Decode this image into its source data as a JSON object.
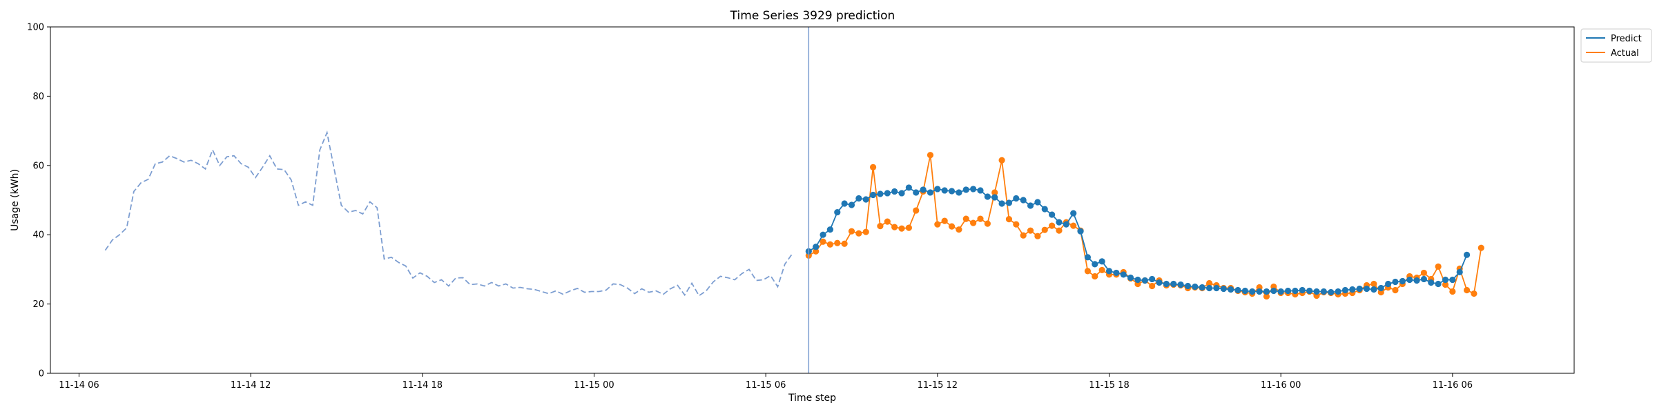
{
  "chart_data": {
    "type": "line",
    "title": "Time Series 3929 prediction",
    "xlabel": "Time step",
    "ylabel": "Usage (kWh)",
    "ylim": [
      0,
      100
    ],
    "yticks": [
      "0",
      "20",
      "40",
      "60",
      "80",
      "100"
    ],
    "x_start": "2023-11-14 05:00",
    "x_end": "2023-11-16 10:15",
    "xticks": [
      {
        "label": "11-14 06",
        "time": "2023-11-14 06:00"
      },
      {
        "label": "11-14 12",
        "time": "2023-11-14 12:00"
      },
      {
        "label": "11-14 18",
        "time": "2023-11-14 18:00"
      },
      {
        "label": "11-15 00",
        "time": "2023-11-15 00:00"
      },
      {
        "label": "11-15 06",
        "time": "2023-11-15 06:00"
      },
      {
        "label": "11-15 12",
        "time": "2023-11-15 12:00"
      },
      {
        "label": "11-15 18",
        "time": "2023-11-15 18:00"
      },
      {
        "label": "11-16 00",
        "time": "2023-11-16 00:00"
      },
      {
        "label": "11-16 06",
        "time": "2023-11-16 06:00"
      }
    ],
    "split_time": "2023-11-15 07:30",
    "legend_position": "outside-top-right",
    "colors": {
      "predict": "#1f77b4",
      "actual": "#ff7f0e",
      "history": "#7d9ed1",
      "split_line": "#7d9ed1"
    },
    "history": {
      "start": "2023-11-14 06:55",
      "step_minutes": 15,
      "values": [
        35.5,
        38.5,
        40,
        42,
        52.5,
        55,
        56,
        60.5,
        61,
        62.8,
        62,
        61,
        61.5,
        60.5,
        59,
        64.5,
        60,
        62.5,
        62.8,
        60.5,
        59.5,
        56.5,
        59.5,
        62.8,
        59,
        58.8,
        55.8,
        48.5,
        49.5,
        48.5,
        64.5,
        69.5,
        59,
        48.5,
        46.5,
        47,
        46,
        49.5,
        47.8,
        33,
        33.5,
        32,
        31,
        27.5,
        29,
        28,
        26.2,
        27,
        25.2,
        27.5,
        27.6,
        25.6,
        25.8,
        25.2,
        26.2,
        25.2,
        25.8,
        24.6,
        24.8,
        24.4,
        24.2,
        23.6,
        23,
        23.8,
        22.8,
        23.8,
        24.5,
        23.4,
        23.6,
        23.6,
        24,
        25.8,
        25.6,
        24.6,
        23,
        24.4,
        23.4,
        23.8,
        22.8,
        24.4,
        25.4,
        22.6,
        26,
        22.4,
        23.8,
        26.4,
        28,
        27.6,
        27,
        28.8,
        30,
        26.8,
        27,
        28.2,
        25,
        31.5,
        34.4
      ]
    },
    "series": [
      {
        "name": "Predict",
        "start": "2023-11-15 07:30",
        "step_minutes": 15,
        "values": [
          35.2,
          36.5,
          40,
          41.5,
          46.5,
          49,
          48.6,
          50.5,
          50.2,
          51.5,
          51.8,
          52,
          52.5,
          52,
          53.6,
          52.2,
          53,
          52.2,
          53.2,
          52.8,
          52.6,
          52.2,
          53,
          53.2,
          52.8,
          51,
          50.8,
          49,
          49.2,
          50.5,
          50,
          48.4,
          49.4,
          47.4,
          45.8,
          43.6,
          43,
          46.2,
          41,
          33.5,
          31.5,
          32.3,
          29.5,
          29,
          28.5,
          27.6,
          27,
          26.8,
          27.2,
          26.2,
          25.8,
          25.8,
          25.6,
          25.2,
          25,
          24.8,
          24.6,
          24.6,
          24.4,
          24.2,
          24,
          23.8,
          23.6,
          23.6,
          23.6,
          23.8,
          23.6,
          23.8,
          23.8,
          24,
          23.8,
          23.6,
          23.6,
          23.4,
          23.6,
          24,
          24.2,
          24.4,
          24.4,
          24.2,
          24.6,
          25.8,
          26.4,
          26.6,
          27,
          26.8,
          27.2,
          26.2,
          25.8,
          27,
          27,
          29.2,
          34.2
        ]
      },
      {
        "name": "Actual",
        "start": "2023-11-15 07:30",
        "step_minutes": 15,
        "values": [
          34,
          35.2,
          38,
          37.2,
          37.6,
          37.4,
          41,
          40.4,
          40.8,
          59.5,
          42.5,
          43.8,
          42.2,
          41.8,
          42,
          47,
          52.5,
          63,
          43,
          44,
          42.4,
          41.5,
          44.6,
          43.4,
          44.6,
          43.2,
          52.2,
          61.5,
          44.5,
          43,
          39.8,
          41.2,
          39.6,
          41.4,
          42.6,
          41.2,
          43.6,
          42.6,
          41.2,
          29.5,
          28,
          29.8,
          28.5,
          28.5,
          29.2,
          27.4,
          25.8,
          26.8,
          25.2,
          26.8,
          25.4,
          25.6,
          25.4,
          24.6,
          24.8,
          24.6,
          26,
          25.4,
          24.6,
          24.6,
          23.8,
          23.4,
          23,
          24.8,
          22.2,
          25,
          23.2,
          23.2,
          22.8,
          23.2,
          23.6,
          22.4,
          23.4,
          23.2,
          22.8,
          23,
          23.2,
          24,
          25.4,
          25.8,
          23.4,
          24.8,
          24,
          25.8,
          28,
          27.6,
          29,
          27.2,
          30.8,
          25.6,
          23.6,
          30.2,
          24,
          23,
          36.2
        ]
      }
    ]
  }
}
